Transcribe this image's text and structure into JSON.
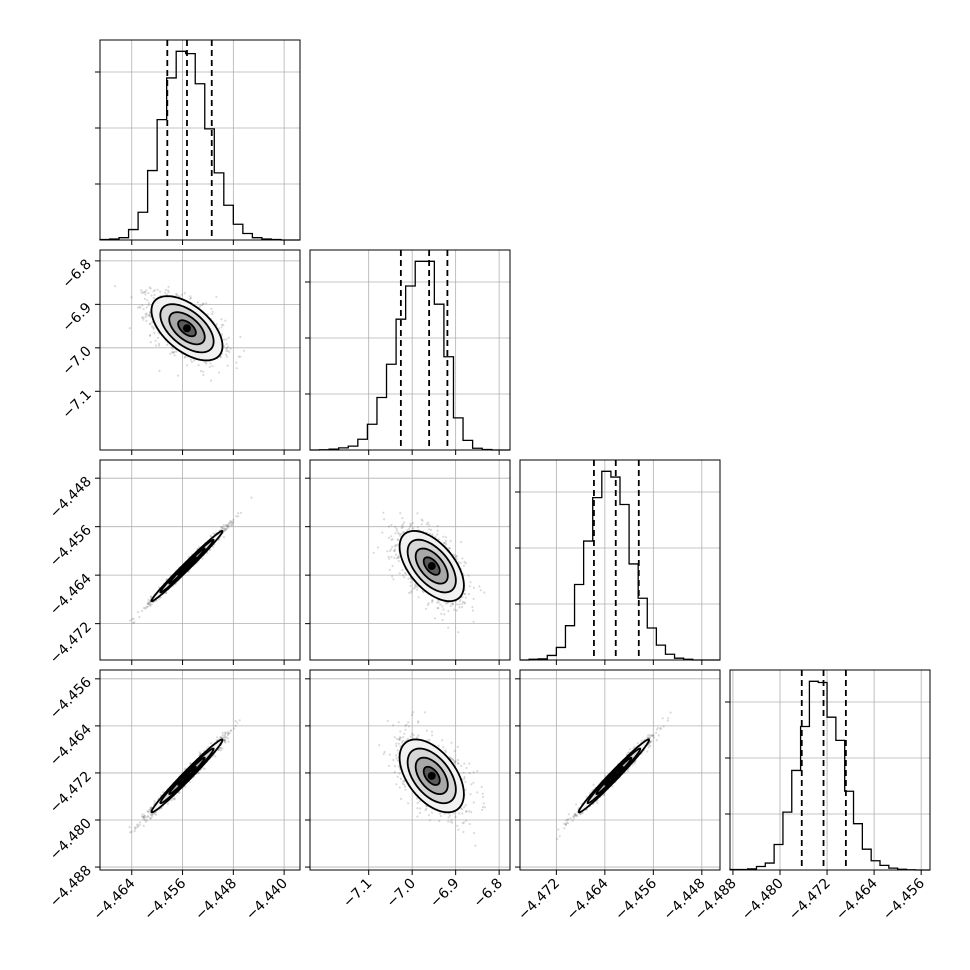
{
  "chart_data": {
    "type": "corner",
    "grid": true,
    "parameters": [
      {
        "range": [
          -4.469,
          -4.4375
        ],
        "ticks": [
          -4.464,
          -4.456,
          -4.448,
          -4.44
        ],
        "tick_labels": [
          "−4.464",
          "−4.456",
          "−4.448",
          "−4.440"
        ],
        "mean": -4.4553,
        "sd": 0.0028,
        "quantiles": [
          -4.4584,
          -4.4553,
          -4.4514
        ],
        "histogram": {
          "bin_edges": [
            -4.469,
            -4.4675,
            -4.466,
            -4.4645,
            -4.463,
            -4.4615,
            -4.46,
            -4.4585,
            -4.457,
            -4.4555,
            -4.454,
            -4.4525,
            -4.451,
            -4.4495,
            -4.448,
            -4.4465,
            -4.445,
            -4.4435,
            -4.442,
            -4.4405,
            -4.439,
            -4.4375
          ],
          "counts": [
            2,
            4,
            10,
            45,
            120,
            300,
            520,
            700,
            815,
            805,
            675,
            480,
            290,
            150,
            68,
            28,
            10,
            4,
            2,
            0,
            0
          ]
        }
      },
      {
        "range": [
          -7.235,
          -6.775
        ],
        "ticks": [
          -7.1,
          -7.0,
          -6.9,
          -6.8
        ],
        "tick_labels": [
          "−7.1",
          "−7.0",
          "−6.9",
          "−6.8"
        ],
        "mean": -6.955,
        "sd": 0.037,
        "quantiles": [
          -7.026,
          -6.961,
          -6.919
        ],
        "histogram": {
          "bin_edges": [
            -7.235,
            -7.213,
            -7.191,
            -7.169,
            -7.147,
            -7.125,
            -7.103,
            -7.081,
            -7.059,
            -7.037,
            -7.015,
            -6.993,
            -6.971,
            -6.949,
            -6.927,
            -6.905,
            -6.883,
            -6.861,
            -6.839,
            -6.817,
            -6.795,
            -6.775
          ],
          "counts": [
            0,
            1,
            4,
            10,
            18,
            50,
            120,
            245,
            400,
            610,
            765,
            880,
            880,
            680,
            435,
            150,
            45,
            8,
            2,
            0,
            0
          ]
        }
      },
      {
        "range": [
          -4.478,
          -4.445
        ],
        "ticks": [
          -4.472,
          -4.464,
          -4.456,
          -4.448
        ],
        "tick_labels": [
          "−4.472",
          "−4.464",
          "−4.456",
          "−4.448"
        ],
        "mean": -4.4625,
        "sd": 0.0029,
        "quantiles": [
          -4.4658,
          -4.4622,
          -4.4584
        ],
        "histogram": {
          "bin_edges": [
            -4.478,
            -4.4765,
            -4.475,
            -4.4735,
            -4.472,
            -4.4705,
            -4.469,
            -4.4675,
            -4.466,
            -4.4645,
            -4.463,
            -4.4615,
            -4.46,
            -4.4585,
            -4.457,
            -4.4555,
            -4.454,
            -4.4525,
            -4.451,
            -4.4495,
            -4.448,
            -4.4465,
            -4.445
          ],
          "counts": [
            0,
            3,
            5,
            20,
            55,
            150,
            330,
            520,
            710,
            825,
            800,
            680,
            420,
            270,
            140,
            65,
            25,
            8,
            3,
            0,
            0,
            0
          ]
        }
      },
      {
        "range": [
          -4.4885,
          -4.4545
        ],
        "ticks": [
          -4.488,
          -4.48,
          -4.472,
          -4.464,
          -4.456
        ],
        "tick_labels": [
          "−4.488",
          "−4.480",
          "−4.472",
          "−4.464",
          "−4.456"
        ],
        "mean": -4.4725,
        "sd": 0.0031,
        "quantiles": [
          -4.4763,
          -4.4726,
          -4.4688
        ],
        "histogram": {
          "bin_edges": [
            -4.4885,
            -4.487,
            -4.4855,
            -4.484,
            -4.4825,
            -4.481,
            -4.4795,
            -4.478,
            -4.4765,
            -4.475,
            -4.4735,
            -4.472,
            -4.4705,
            -4.469,
            -4.4675,
            -4.466,
            -4.4645,
            -4.463,
            -4.4615,
            -4.46,
            -4.4585,
            -4.457,
            -4.4555,
            -4.4545
          ],
          "counts": [
            2,
            2,
            5,
            15,
            30,
            110,
            250,
            430,
            620,
            815,
            810,
            660,
            560,
            340,
            200,
            90,
            40,
            20,
            8,
            3,
            1,
            0,
            0
          ]
        }
      }
    ],
    "correlations": {
      "1-0": -0.55,
      "2-0": 0.99,
      "2-1": -0.55,
      "3-0": 0.985,
      "3-1": -0.5,
      "3-2": 0.985
    },
    "contour_levels_sigma": [
      0.5,
      1,
      1.5,
      2
    ]
  }
}
